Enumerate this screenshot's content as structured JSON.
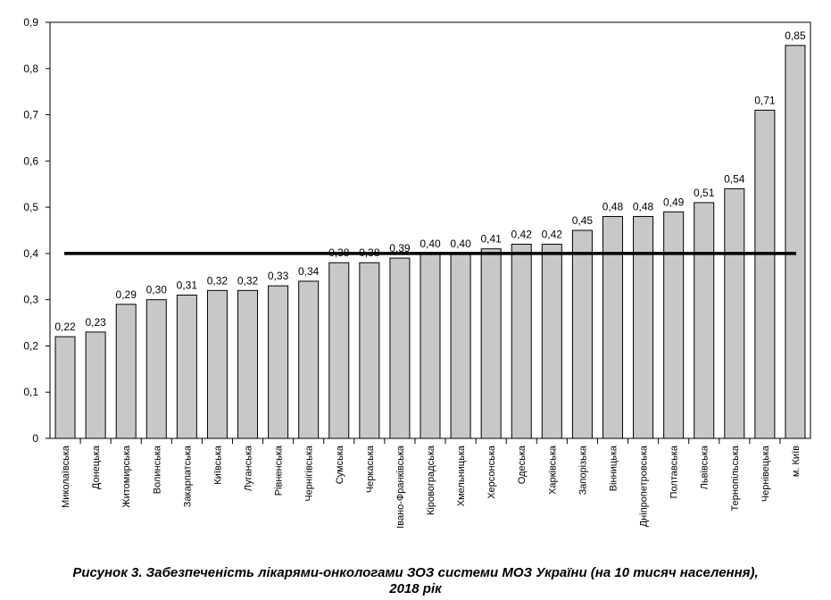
{
  "chart_data": {
    "type": "bar",
    "title": "",
    "xlabel": "",
    "ylabel": "",
    "ylim": [
      0,
      0.9
    ],
    "yticks": [
      "0",
      "0,1",
      "0,2",
      "0,3",
      "0,4",
      "0,5",
      "0,6",
      "0,7",
      "0,8",
      "0,9"
    ],
    "grid": false,
    "legend": "none",
    "categories": [
      "Миколаївська",
      "Донецька",
      "Житомирська",
      "Волинська",
      "Закарпатська",
      "Київська",
      "Луганська",
      "Рівненська",
      "Чернігівська",
      "Сумська",
      "Черкаська",
      "Івано-Франківська",
      "Кіровоградська",
      "Хмельницька",
      "Херсонська",
      "Одеська",
      "Харківська",
      "Запорізька",
      "Вінницька",
      "Дніпропетровська",
      "Полтавська",
      "Львівська",
      "Тернопільська",
      "Чернівецька",
      "м. Київ"
    ],
    "values": [
      0.22,
      0.23,
      0.29,
      0.3,
      0.31,
      0.32,
      0.32,
      0.33,
      0.34,
      0.38,
      0.38,
      0.39,
      0.4,
      0.4,
      0.41,
      0.42,
      0.42,
      0.45,
      0.48,
      0.48,
      0.49,
      0.51,
      0.54,
      0.71,
      0.85
    ],
    "value_labels": [
      "0,22",
      "0,23",
      "0,29",
      "0,30",
      "0,31",
      "0,32",
      "0,32",
      "0,33",
      "0,34",
      "0,38",
      "0,38",
      "0,39",
      "0,40",
      "0,40",
      "0,41",
      "0,42",
      "0,42",
      "0,45",
      "0,48",
      "0,48",
      "0,49",
      "0,51",
      "0,54",
      "0,71",
      "0,85"
    ],
    "reference_line": 0.4,
    "colors": {
      "bar_fill": "#c8c8c8",
      "bar_stroke": "#000000",
      "reference_line": "#000000"
    }
  },
  "caption": {
    "line1": "Рисунок 3. Забезпеченість лікарями-онкологами ЗОЗ системи МОЗ України (на 10 тисяч населення),",
    "line2": "2018 рік"
  }
}
